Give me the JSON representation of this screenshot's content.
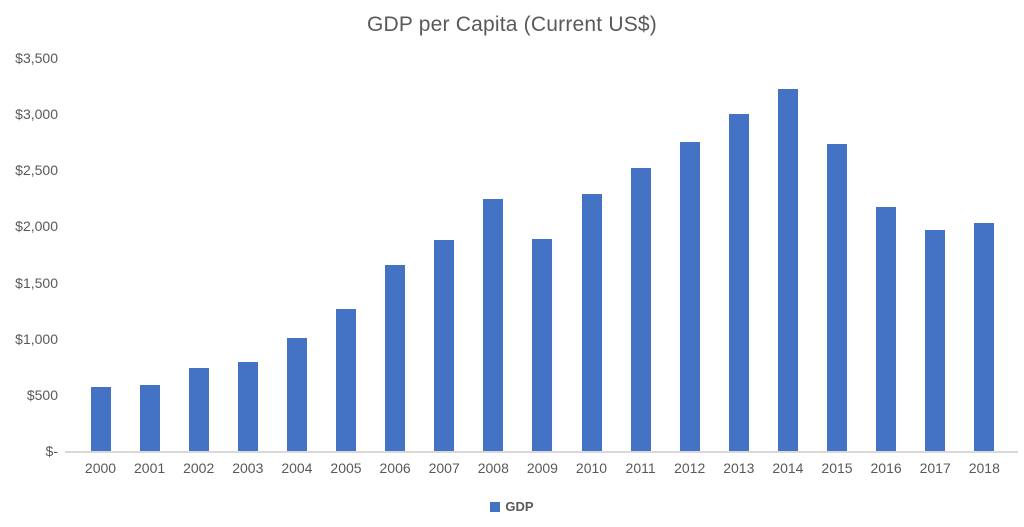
{
  "colors": {
    "bar": "#4472C4",
    "text": "#595959",
    "axis_line": "#D9D9D9",
    "background": "#FFFFFF"
  },
  "chart_data": {
    "type": "bar",
    "title": "GDP per Capita (Current US$)",
    "categories": [
      "2000",
      "2001",
      "2002",
      "2003",
      "2004",
      "2005",
      "2006",
      "2007",
      "2008",
      "2009",
      "2010",
      "2011",
      "2012",
      "2013",
      "2014",
      "2015",
      "2016",
      "2017",
      "2018"
    ],
    "series": [
      {
        "name": "GDP",
        "values": [
          568,
          590,
          742,
          795,
          1008,
          1268,
          1656,
          1883,
          2243,
          1891,
          2292,
          2520,
          2748,
          2998,
          3223,
          2730,
          2176,
          1969,
          2028
        ]
      }
    ],
    "xlabel": "",
    "ylabel": "",
    "ylim": [
      0,
      3500
    ],
    "y_tick_interval": 500,
    "y_tick_labels": [
      "$-",
      "$500",
      "$1,000",
      "$1,500",
      "$2,000",
      "$2,500",
      "$3,000",
      "$3,500"
    ],
    "grid": "off",
    "legend": {
      "position": "bottom-center",
      "entries": [
        "GDP"
      ]
    }
  }
}
